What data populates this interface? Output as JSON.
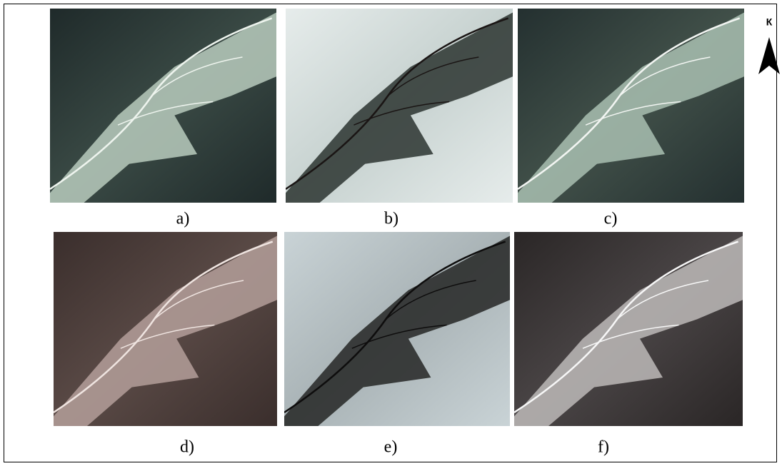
{
  "figure": {
    "panels": [
      {
        "label": "a)"
      },
      {
        "label": "b)"
      },
      {
        "label": "c)"
      },
      {
        "label": "d)"
      },
      {
        "label": "e)"
      },
      {
        "label": "f)"
      }
    ],
    "north_label": "К"
  }
}
